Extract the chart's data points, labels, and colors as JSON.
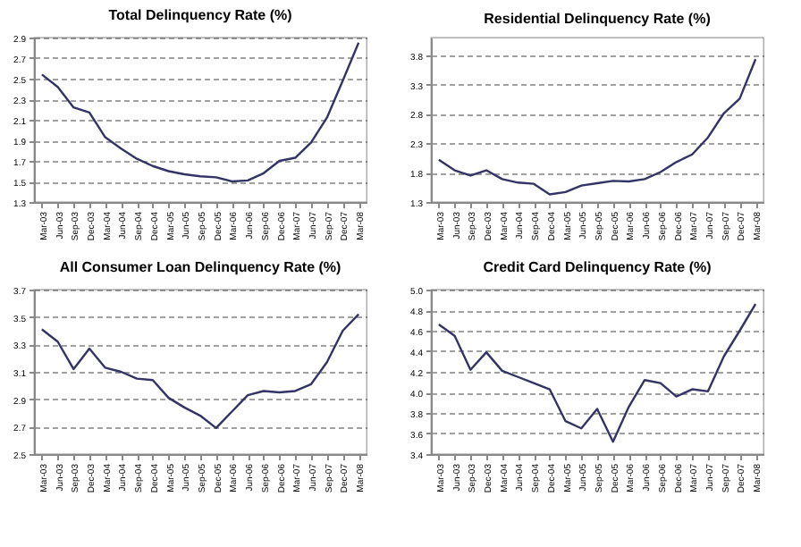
{
  "chart_data": [
    {
      "type": "line",
      "title": "Total Delinquency Rate (%)",
      "categories": [
        "Mar-03",
        "Jun-03",
        "Sep-03",
        "Dec-03",
        "Mar-04",
        "Jun-04",
        "Sep-04",
        "Dec-04",
        "Mar-05",
        "Jun-05",
        "Sep-05",
        "Dec-05",
        "Mar-06",
        "Jun-06",
        "Sep-06",
        "Dec-06",
        "Mar-07",
        "Jun-07",
        "Sep-07",
        "Dec-07",
        "Mar-08"
      ],
      "values": [
        2.54,
        2.42,
        2.22,
        2.17,
        1.93,
        1.82,
        1.72,
        1.65,
        1.6,
        1.57,
        1.55,
        1.54,
        1.5,
        1.51,
        1.58,
        1.7,
        1.73,
        1.88,
        2.12,
        2.48,
        2.85
      ],
      "color": "#333366",
      "ylim": [
        1.3,
        2.9
      ],
      "yticks": [
        1.3,
        1.5,
        1.7,
        1.9,
        2.1,
        2.3,
        2.5,
        2.7,
        2.9
      ],
      "grid": "y"
    },
    {
      "type": "line",
      "title": "Residential Delinquency Rate (%)",
      "categories": [
        "Mar-03",
        "Jun-03",
        "Sep-03",
        "Dec-03",
        "Mar-04",
        "Jun-04",
        "Sep-04",
        "Dec-04",
        "Mar-05",
        "Jun-05",
        "Sep-05",
        "Dec-05",
        "Mar-06",
        "Jun-06",
        "Sep-06",
        "Dec-06",
        "Mar-07",
        "Jun-07",
        "Sep-07",
        "Dec-07",
        "Mar-08"
      ],
      "values": [
        2.02,
        1.84,
        1.75,
        1.84,
        1.69,
        1.63,
        1.61,
        1.43,
        1.47,
        1.58,
        1.62,
        1.66,
        1.65,
        1.69,
        1.81,
        1.98,
        2.11,
        2.4,
        2.81,
        3.06,
        3.73
      ],
      "color": "#333366",
      "ylim": [
        1.3,
        4.1
      ],
      "yticks": [
        1.3,
        1.8,
        2.3,
        2.8,
        3.3,
        3.8
      ],
      "grid": "y"
    },
    {
      "type": "line",
      "title": "All Consumer Loan Delinquency Rate (%)",
      "categories": [
        "Mar-03",
        "Jun-03",
        "Sep-03",
        "Dec-03",
        "Mar-04",
        "Jun-04",
        "Sep-04",
        "Dec-04",
        "Mar-05",
        "Jun-05",
        "Sep-05",
        "Dec-05",
        "Mar-06",
        "Jun-06",
        "Sep-06",
        "Dec-06",
        "Mar-07",
        "Jun-07",
        "Sep-07",
        "Dec-07",
        "Mar-08"
      ],
      "values": [
        3.41,
        3.32,
        3.12,
        3.27,
        3.13,
        3.1,
        3.05,
        3.04,
        2.91,
        2.84,
        2.78,
        2.69,
        2.81,
        2.93,
        2.96,
        2.95,
        2.96,
        3.01,
        3.17,
        3.4,
        3.52
      ],
      "color": "#333366",
      "ylim": [
        2.5,
        3.7
      ],
      "yticks": [
        2.5,
        2.7,
        2.9,
        3.1,
        3.3,
        3.5,
        3.7
      ],
      "grid": "y"
    },
    {
      "type": "line",
      "title": "Credit Card Delinquency Rate (%)",
      "categories": [
        "Mar-03",
        "Jun-03",
        "Sep-03",
        "Dec-03",
        "Mar-04",
        "Jun-04",
        "Sep-04",
        "Dec-04",
        "Mar-05",
        "Jun-05",
        "Sep-05",
        "Dec-05",
        "Mar-06",
        "Jun-06",
        "Sep-06",
        "Dec-06",
        "Mar-07",
        "Jun-07",
        "Sep-07",
        "Dec-07",
        "Mar-08"
      ],
      "values": [
        4.66,
        4.55,
        4.22,
        4.39,
        4.21,
        4.15,
        4.09,
        4.03,
        3.72,
        3.65,
        3.84,
        3.52,
        3.86,
        4.12,
        4.09,
        3.96,
        4.03,
        4.01,
        4.35,
        4.6,
        4.86
      ],
      "color": "#333366",
      "ylim": [
        3.4,
        5.0
      ],
      "yticks": [
        3.4,
        3.6,
        3.8,
        {
          "value": 4,
          "label": "4.0"
        },
        4.2,
        4.4,
        4.6,
        4.8,
        {
          "value": 5,
          "label": "5.0"
        }
      ],
      "grid": "y"
    }
  ]
}
